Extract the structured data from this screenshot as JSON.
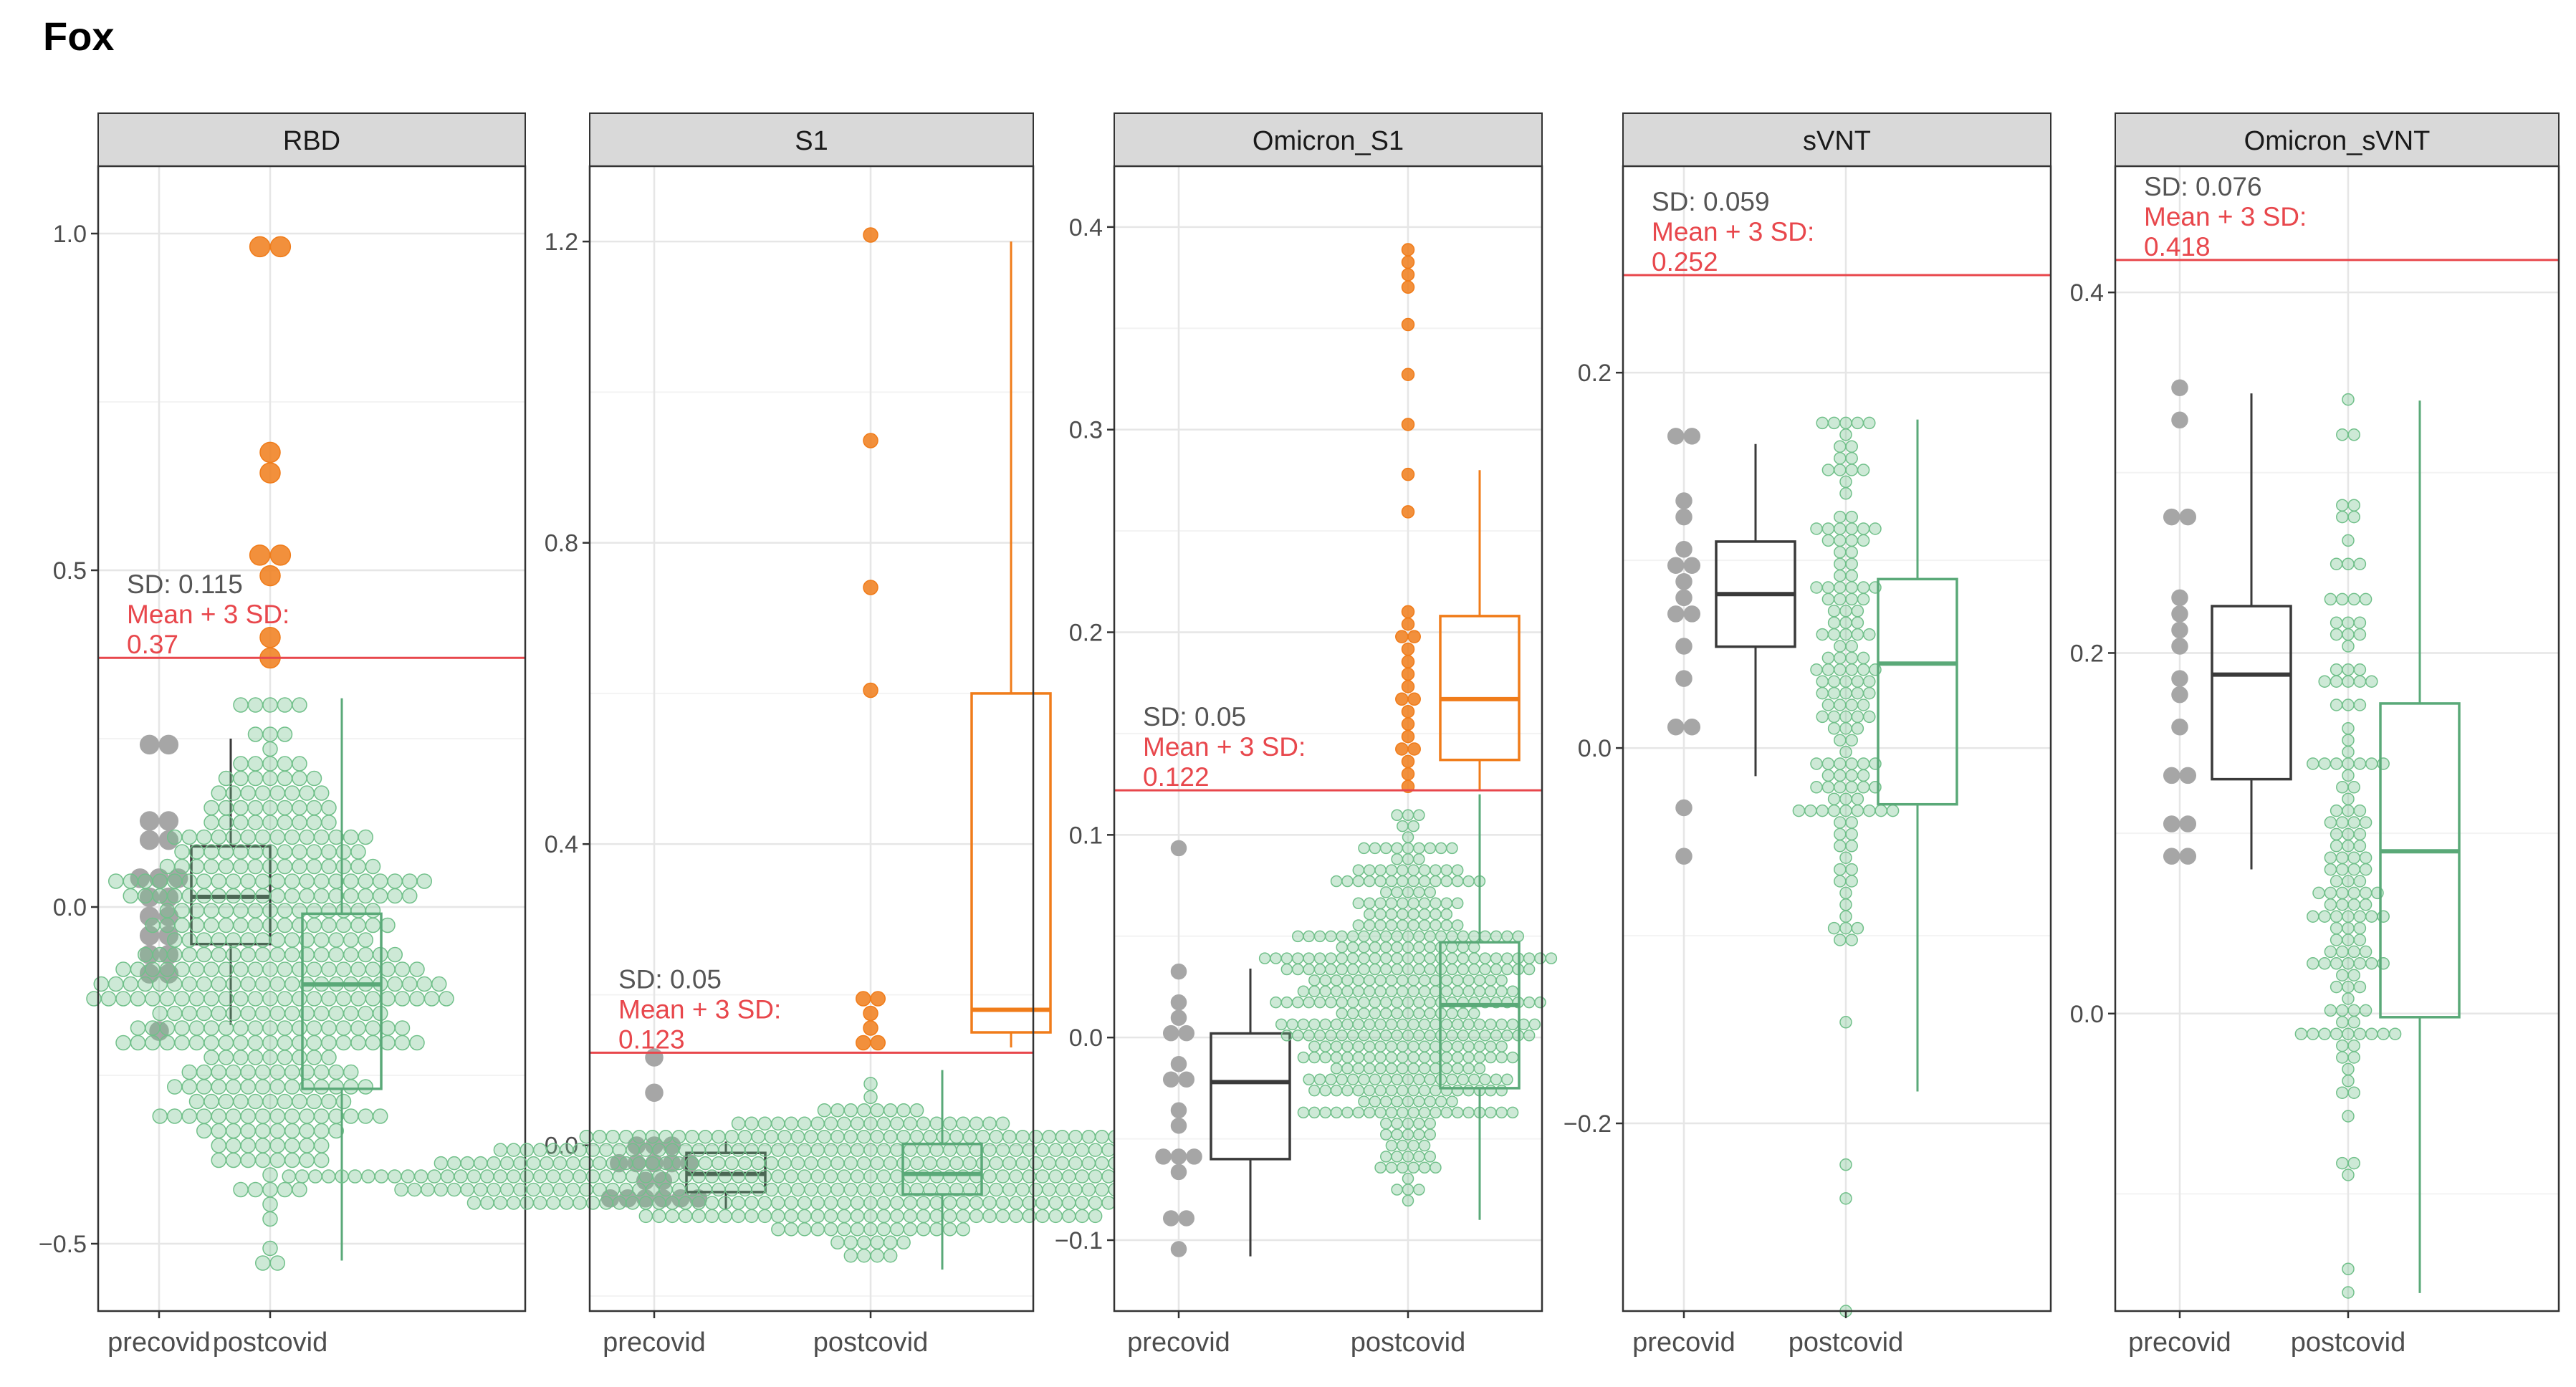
{
  "title": "Fox",
  "colors": {
    "threshold": "#e8474c",
    "sd_text": "#555555",
    "precovid": "#a6a6a6",
    "precovid_box": "#3a3a3a",
    "postcovid_normal": "#71c08a",
    "postcovid_box": "#5aa978",
    "postcovid_high": "#f07c1a",
    "strip_bg": "#d9d9d9",
    "grid_major": "#e6e6e6",
    "grid_minor": "#f3f3f3"
  },
  "chart_data": [
    {
      "type": "box-swarm",
      "panel": "RBD",
      "categories": [
        "precovid",
        "postcovid"
      ],
      "ylim": [
        -0.6,
        1.1
      ],
      "yticks": [
        -0.5,
        0.0,
        0.5,
        1.0
      ],
      "tick_labels": [
        "−0.5",
        "0.0",
        "0.5",
        "1.0"
      ],
      "threshold": 0.37,
      "sd_label": "SD: 0.115",
      "mean_label": "Mean + 3 SD:",
      "mean_value": "0.37",
      "precovid": {
        "box": {
          "q1": -0.055,
          "median": 0.015,
          "q3": 0.09,
          "whisker_low": -0.175,
          "whisker_high": 0.25
        },
        "points": [
          0.25,
          0.25,
          0.12,
          0.12,
          0.095,
          0.095,
          0.05,
          0.05,
          0.05,
          0.02,
          0.02,
          -0.015,
          -0.015,
          -0.04,
          -0.04,
          -0.07,
          -0.07,
          -0.1,
          -0.1,
          -0.175
        ]
      },
      "postcovid": {
        "box": {
          "q1": -0.27,
          "median": -0.115,
          "q3": -0.01,
          "whisker_low": -0.525,
          "whisker_high": 0.31
        },
        "n_points": 420,
        "center": -0.07,
        "spread": 0.16,
        "range": [
          -0.52,
          0.3
        ],
        "high_points": [
          0.98,
          0.97,
          0.66,
          0.65,
          0.53,
          0.52,
          0.49,
          0.4,
          0.38
        ]
      }
    },
    {
      "type": "box-swarm",
      "panel": "S1",
      "categories": [
        "precovid",
        "postcovid"
      ],
      "ylim": [
        -0.22,
        1.3
      ],
      "yticks": [
        0.0,
        0.4,
        0.8,
        1.2
      ],
      "tick_labels": [
        "0.0",
        "0.4",
        "0.8",
        "1.2"
      ],
      "threshold": 0.123,
      "sd_label": "SD: 0.05",
      "mean_label": "Mean + 3 SD:",
      "mean_value": "0.123",
      "precovid": {
        "box": {
          "q1": -0.062,
          "median": -0.038,
          "q3": -0.01,
          "whisker_low": -0.085,
          "whisker_high": 0.005
        },
        "points": [
          0.11,
          0.07,
          0.0,
          0.0,
          0.0,
          -0.015,
          -0.015,
          -0.03,
          -0.03,
          -0.03,
          -0.045,
          -0.045,
          -0.06,
          -0.06,
          -0.06,
          -0.075,
          -0.075,
          -0.075
        ]
      },
      "postcovid": {
        "box": {
          "q1": -0.065,
          "median": -0.038,
          "q3": 0.002,
          "whisker_low": -0.165,
          "whisker_high": 0.1
        },
        "n_points": 480,
        "center": -0.04,
        "spread": 0.04,
        "range": [
          -0.17,
          0.1
        ],
        "high_box": {
          "q1": 0.15,
          "median": 0.18,
          "q3": 0.6,
          "whisker_low": 0.13,
          "whisker_high": 1.2
        },
        "high_points": [
          1.2,
          0.94,
          0.74,
          0.6,
          0.2,
          0.19,
          0.175,
          0.16,
          0.145,
          0.13
        ]
      }
    },
    {
      "type": "box-swarm",
      "panel": "Omicron_S1",
      "categories": [
        "precovid",
        "postcovid"
      ],
      "ylim": [
        -0.135,
        0.43
      ],
      "yticks": [
        -0.1,
        0.0,
        0.1,
        0.2,
        0.3,
        0.4
      ],
      "tick_labels": [
        "−0.1",
        "0.0",
        "0.1",
        "0.2",
        "0.3",
        "0.4"
      ],
      "threshold": 0.122,
      "sd_label": "SD: 0.05",
      "mean_label": "Mean + 3 SD:",
      "mean_value": "0.122",
      "precovid": {
        "box": {
          "q1": -0.06,
          "median": -0.022,
          "q3": 0.002,
          "whisker_low": -0.108,
          "whisker_high": 0.034
        },
        "points": [
          0.096,
          0.034,
          0.015,
          0.01,
          0.0,
          0.0,
          -0.01,
          -0.02,
          -0.02,
          -0.035,
          -0.045,
          -0.06,
          -0.06,
          -0.06,
          -0.07,
          -0.088,
          -0.088,
          -0.108
        ]
      },
      "postcovid": {
        "box": {
          "q1": -0.025,
          "median": 0.016,
          "q3": 0.047,
          "whisker_low": -0.09,
          "whisker_high": 0.12
        },
        "n_points": 430,
        "center": 0.02,
        "spread": 0.04,
        "range": [
          -0.09,
          0.12
        ],
        "high_box": {
          "q1": 0.137,
          "median": 0.167,
          "q3": 0.208,
          "whisker_low": 0.122,
          "whisker_high": 0.28
        },
        "high_points": [
          0.388,
          0.382,
          0.376,
          0.37,
          0.35,
          0.33,
          0.3,
          0.28,
          0.26,
          0.212,
          0.205,
          0.2,
          0.195,
          0.19,
          0.185,
          0.18,
          0.175,
          0.17,
          0.165,
          0.16,
          0.155,
          0.15,
          0.145,
          0.14,
          0.135,
          0.13,
          0.125
        ]
      }
    },
    {
      "type": "box-swarm",
      "panel": "sVNT",
      "categories": [
        "precovid",
        "postcovid"
      ],
      "ylim": [
        -0.3,
        0.31
      ],
      "yticks": [
        -0.2,
        0.0,
        0.2
      ],
      "tick_labels": [
        "−0.2",
        "0.0",
        "0.2"
      ],
      "threshold": 0.252,
      "sd_label": "SD: 0.059",
      "mean_label": "Mean + 3 SD:",
      "mean_value": "0.252",
      "precovid": {
        "box": {
          "q1": 0.054,
          "median": 0.082,
          "q3": 0.11,
          "whisker_low": -0.015,
          "whisker_high": 0.162
        },
        "points": [
          0.162,
          0.162,
          0.132,
          0.122,
          0.11,
          0.1,
          0.1,
          0.09,
          0.08,
          0.07,
          0.07,
          0.055,
          0.037,
          0.015,
          0.013,
          -0.03,
          -0.058
        ]
      },
      "postcovid": {
        "box": {
          "q1": -0.03,
          "median": 0.045,
          "q3": 0.09,
          "whisker_low": -0.183,
          "whisker_high": 0.175
        },
        "n_points": 140,
        "center": 0.04,
        "spread": 0.07,
        "range": [
          -0.18,
          0.175
        ],
        "high_points": [],
        "outliers": [
          -0.222,
          -0.24,
          -0.3
        ]
      }
    },
    {
      "type": "box-swarm",
      "panel": "Omicron_sVNT",
      "categories": [
        "precovid",
        "postcovid"
      ],
      "ylim": [
        -0.165,
        0.47
      ],
      "yticks": [
        0.0,
        0.2,
        0.4
      ],
      "tick_labels": [
        "0.0",
        "0.2",
        "0.4"
      ],
      "threshold": 0.418,
      "sd_label": "SD: 0.076",
      "mean_label": "Mean + 3 SD:",
      "mean_value": "0.418",
      "precovid": {
        "box": {
          "q1": 0.13,
          "median": 0.188,
          "q3": 0.226,
          "whisker_low": 0.08,
          "whisker_high": 0.344
        },
        "points": [
          0.344,
          0.33,
          0.278,
          0.275,
          0.228,
          0.225,
          0.21,
          0.208,
          0.19,
          0.18,
          0.16,
          0.135,
          0.13,
          0.108,
          0.105,
          0.085,
          0.085
        ]
      },
      "postcovid": {
        "box": {
          "q1": -0.002,
          "median": 0.09,
          "q3": 0.172,
          "whisker_low": -0.155,
          "whisker_high": 0.34
        },
        "n_points": 140,
        "center": 0.09,
        "spread": 0.1,
        "range": [
          -0.155,
          0.34
        ],
        "high_points": []
      }
    }
  ]
}
